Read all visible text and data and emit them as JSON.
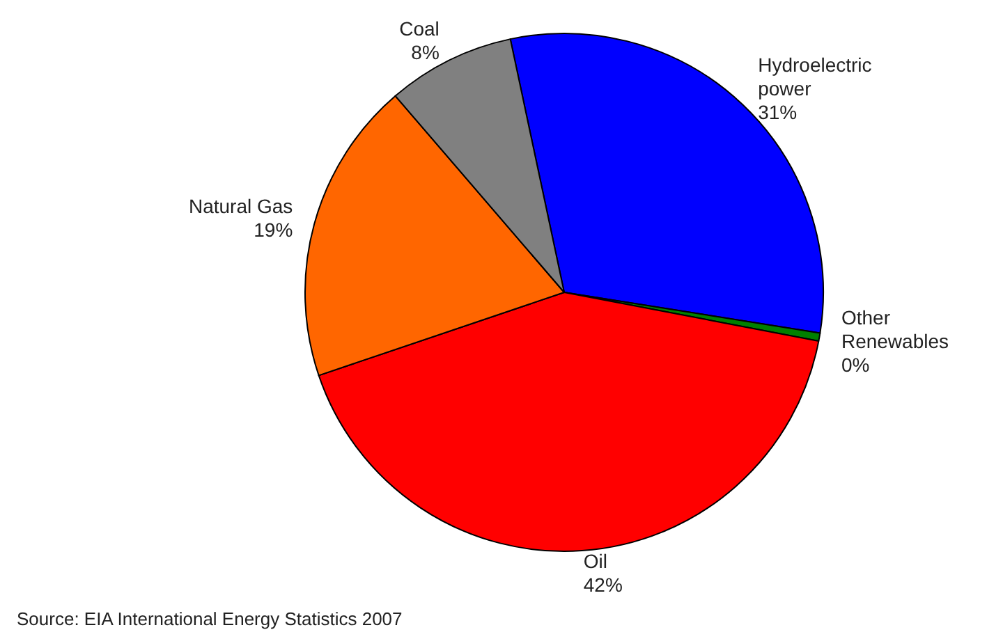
{
  "chart_data": {
    "type": "pie",
    "categories": [
      "Hydroelectric power",
      "Other Renewables",
      "Oil",
      "Natural Gas",
      "Coal"
    ],
    "values": [
      31,
      0.5,
      42,
      19,
      8
    ],
    "value_labels": [
      "31%",
      "0%",
      "42%",
      "19%",
      "8%"
    ],
    "colors": [
      "#0000ff",
      "#008000",
      "#ff0000",
      "#ff6600",
      "#808080"
    ],
    "annotations": [
      "Source: EIA International Energy Statistics 2007"
    ]
  }
}
